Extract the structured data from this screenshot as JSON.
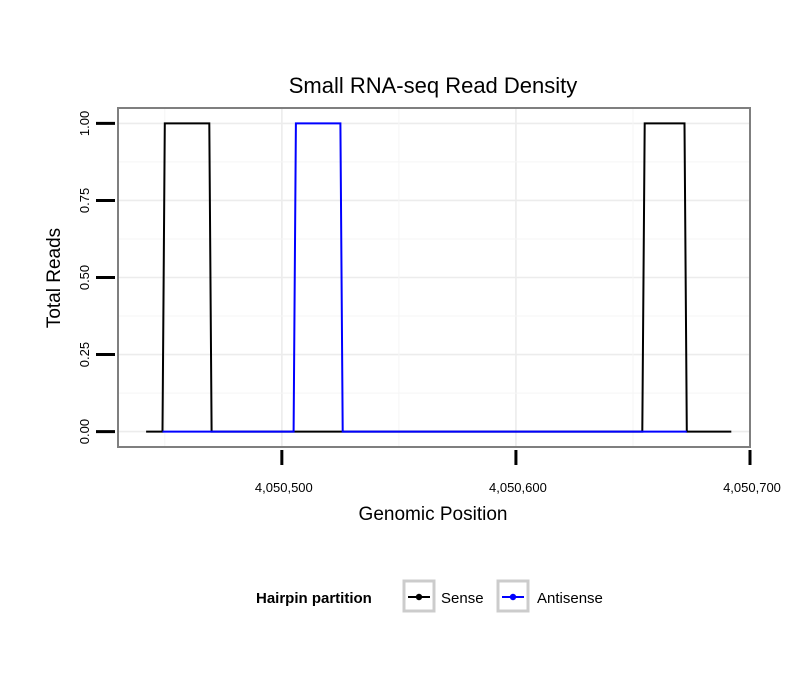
{
  "chart_data": {
    "type": "line",
    "title": "Small RNA-seq Read Density",
    "xlabel": "Genomic Position",
    "ylabel": "Total Reads",
    "xlim": [
      4050430,
      4050700
    ],
    "ylim": [
      -0.05,
      1.05
    ],
    "x_ticks": [
      4050500,
      4050600,
      4050700
    ],
    "x_tick_labels": [
      "4,050,500",
      "4,050,600",
      "4,050,700"
    ],
    "y_ticks": [
      0.0,
      0.25,
      0.5,
      0.75,
      1.0
    ],
    "y_tick_labels": [
      "0.00",
      "0.25",
      "0.50",
      "0.75",
      "1.00"
    ],
    "grid": true,
    "legend": {
      "title": "Hairpin partition",
      "position": "bottom"
    },
    "series": [
      {
        "name": "Sense",
        "color": "#000000",
        "x": [
          4050442,
          4050449,
          4050450,
          4050469,
          4050470,
          4050654,
          4050655,
          4050672,
          4050673,
          4050692
        ],
        "y": [
          0,
          0,
          1,
          1,
          0,
          0,
          1,
          1,
          0,
          0
        ]
      },
      {
        "name": "Antisense",
        "color": "#0000ff",
        "x": [
          4050449,
          4050505,
          4050506,
          4050525,
          4050526,
          4050654,
          4050655,
          4050672,
          4050673
        ],
        "y": [
          0,
          0,
          1,
          1,
          0,
          0,
          0,
          0,
          0
        ]
      }
    ]
  }
}
